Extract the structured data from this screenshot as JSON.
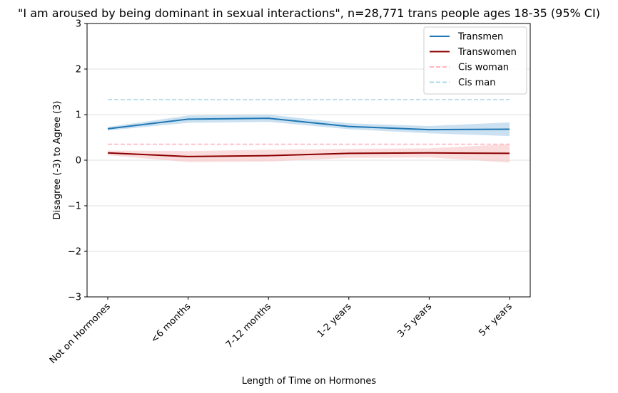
{
  "chart_data": {
    "type": "line",
    "title": "\"I am aroused by being dominant in sexual interactions\", n=28,771 trans people ages 18-35 (95% CI)",
    "xlabel": "Length of Time on Hormones",
    "ylabel": "Disagree (-3) to Agree (3)",
    "categories": [
      "Not on Hormones",
      "<6 months",
      "7-12 months",
      "1-2 years",
      "3-5 years",
      "5+ years"
    ],
    "ylim": [
      -3,
      3
    ],
    "yticks": [
      -3,
      -2,
      -1,
      0,
      1,
      2,
      3
    ],
    "ytick_labels": [
      "−3",
      "−2",
      "−1",
      "0",
      "1",
      "2",
      "3"
    ],
    "grid": "horizontal",
    "legend_position": "top-right",
    "series": [
      {
        "name": "Transmen",
        "color": "#1f77b4",
        "band_color": "#a8cde8",
        "values": [
          0.69,
          0.9,
          0.92,
          0.74,
          0.67,
          0.68
        ],
        "ci_low": [
          0.65,
          0.82,
          0.84,
          0.68,
          0.59,
          0.53
        ],
        "ci_high": [
          0.73,
          0.98,
          1.0,
          0.81,
          0.75,
          0.83
        ]
      },
      {
        "name": "Transwomen",
        "color": "#8b0000",
        "band_color": "#f7c4c4",
        "values": [
          0.16,
          0.08,
          0.1,
          0.15,
          0.16,
          0.15
        ],
        "ci_low": [
          0.11,
          -0.04,
          -0.03,
          0.05,
          0.06,
          -0.05
        ],
        "ci_high": [
          0.21,
          0.2,
          0.23,
          0.25,
          0.26,
          0.35
        ]
      }
    ],
    "reference_lines": [
      {
        "name": "Cis woman",
        "color": "#ffb6c1",
        "value": 0.35,
        "dash": "dashed"
      },
      {
        "name": "Cis man",
        "color": "#add8e6",
        "value": 1.33,
        "dash": "dashed"
      }
    ]
  }
}
